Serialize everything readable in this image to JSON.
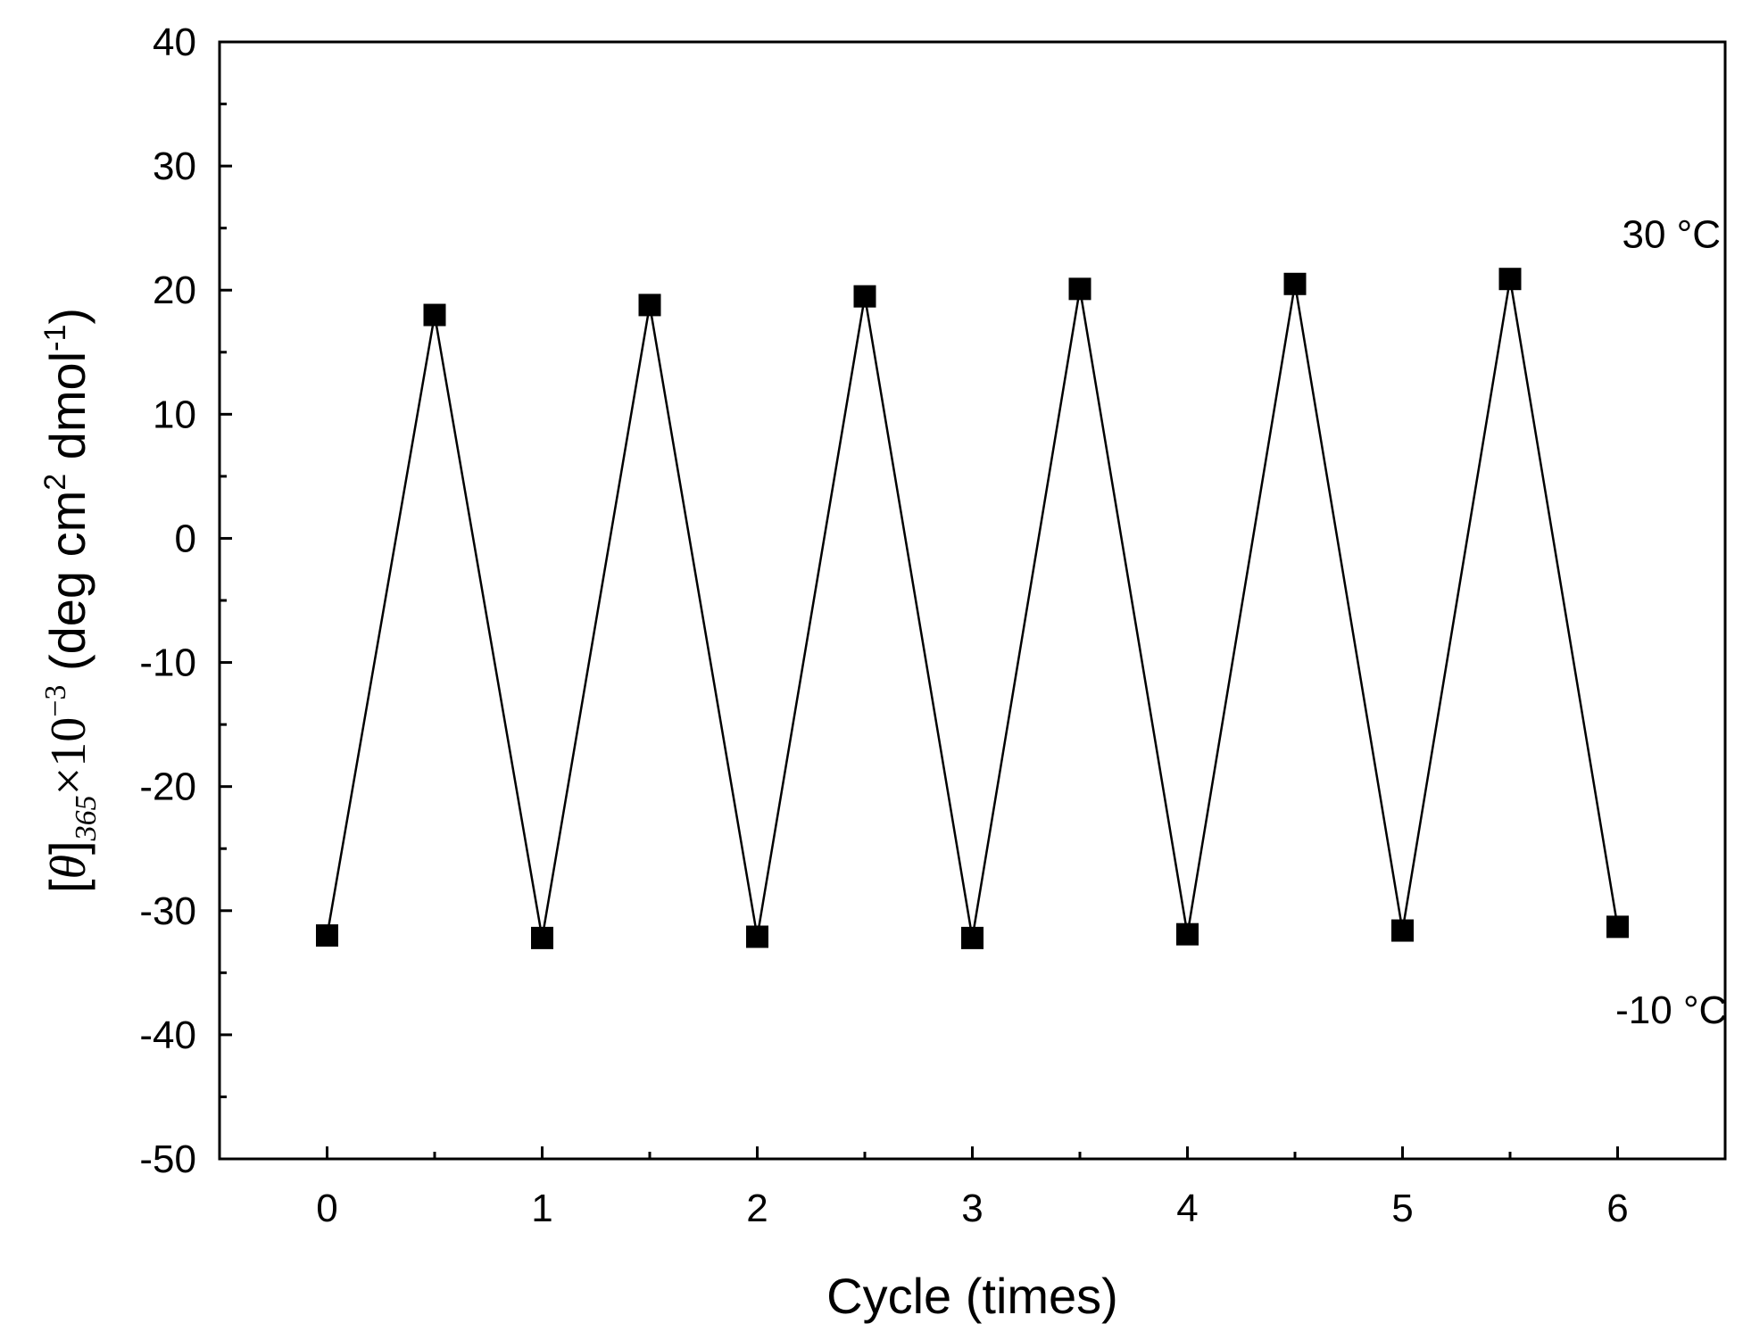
{
  "chart_data": {
    "type": "line",
    "xlabel": "Cycle (times)",
    "ylabel": {
      "theta": "θ",
      "subscript": "365",
      "multiplier": "×10",
      "exponent": "−3",
      "unit_part1": " (deg cm",
      "unit_sup1": "2",
      "unit_part2": " dmol",
      "unit_sup2": "-1",
      "unit_part3": ")"
    },
    "xlim": [
      -0.5,
      6.5
    ],
    "ylim": [
      -50,
      40
    ],
    "xticks": [
      0,
      1,
      2,
      3,
      4,
      5,
      6
    ],
    "xtick_labels": [
      "0",
      "1",
      "2",
      "3",
      "4",
      "5",
      "6"
    ],
    "yticks": [
      -50,
      -40,
      -30,
      -20,
      -10,
      0,
      10,
      20,
      30,
      40
    ],
    "ytick_labels": [
      "-50",
      "-40",
      "-30",
      "-20",
      "-10",
      "0",
      "10",
      "20",
      "30",
      "40"
    ],
    "series": [
      {
        "marker": "square",
        "color": "#000000",
        "x": [
          0,
          0.5,
          1,
          1.5,
          2,
          2.5,
          3,
          3.5,
          4,
          4.5,
          5,
          5.5,
          6
        ],
        "y": [
          -32.0,
          18.0,
          -32.2,
          18.8,
          -32.1,
          19.5,
          -32.2,
          20.1,
          -31.9,
          20.5,
          -31.6,
          20.9,
          -31.3
        ]
      }
    ],
    "annotations": [
      {
        "text": "30 °C",
        "x": 6.25,
        "y": 24.5
      },
      {
        "text": "-10 °C",
        "x": 6.25,
        "y": -38.0
      }
    ],
    "grid": false,
    "legend": "none"
  }
}
